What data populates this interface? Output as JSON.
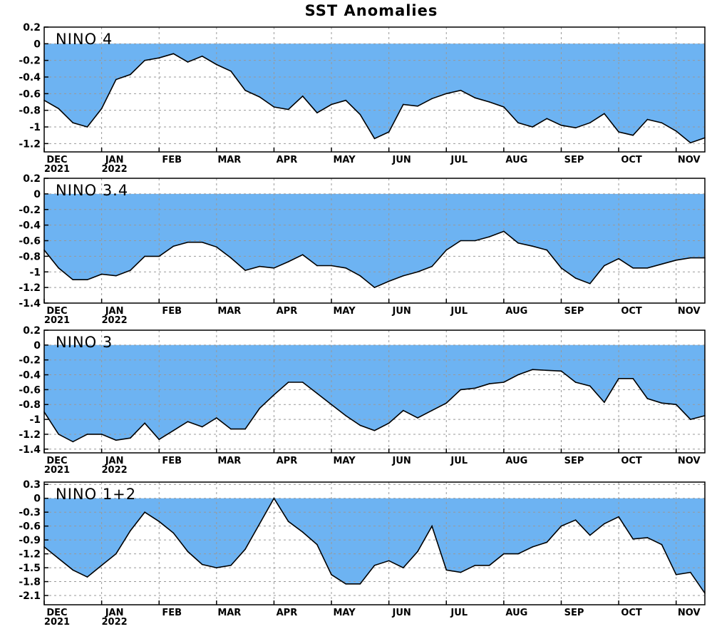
{
  "title": "SST Anomalies",
  "colors": {
    "fill": "#6db3f2",
    "line": "#000000",
    "grid": "#999999",
    "background": "#ffffff"
  },
  "x_axis": {
    "tick_labels": [
      "DEC",
      "JAN",
      "FEB",
      "MAR",
      "APR",
      "MAY",
      "JUN",
      "JUL",
      "AUG",
      "SEP",
      "OCT",
      "NOV"
    ],
    "year_labels": [
      {
        "month": "DEC",
        "year": "2021"
      },
      {
        "month": "JAN",
        "year": "2022"
      }
    ]
  },
  "chart_data": [
    {
      "type": "area",
      "label": "NINO 4",
      "ylim": [
        -1.3,
        0.2
      ],
      "yticks": [
        "0.2",
        "0",
        "-0.2",
        "-0.4",
        "-0.6",
        "-0.8",
        "-1",
        "-1.2"
      ],
      "ytick_values": [
        0.2,
        0,
        -0.2,
        -0.4,
        -0.6,
        -0.8,
        -1,
        -1.2
      ],
      "grid": true,
      "x": [
        0,
        0.25,
        0.5,
        0.75,
        1,
        1.25,
        1.5,
        1.75,
        2,
        2.25,
        2.5,
        2.75,
        3,
        3.25,
        3.5,
        3.75,
        4,
        4.25,
        4.5,
        4.75,
        5,
        5.25,
        5.5,
        5.75,
        6,
        6.25,
        6.5,
        6.75,
        7,
        7.25,
        7.5,
        7.75,
        8,
        8.25,
        8.5,
        8.75,
        9,
        9.25,
        9.5,
        9.75,
        10,
        10.25,
        10.5,
        10.75,
        11,
        11.25,
        11.5
      ],
      "values": [
        -0.68,
        -0.78,
        -0.95,
        -1.0,
        -0.78,
        -0.43,
        -0.37,
        -0.2,
        -0.17,
        -0.12,
        -0.22,
        -0.15,
        -0.25,
        -0.33,
        -0.56,
        -0.64,
        -0.76,
        -0.79,
        -0.63,
        -0.83,
        -0.73,
        -0.68,
        -0.85,
        -1.14,
        -1.06,
        -0.73,
        -0.75,
        -0.66,
        -0.6,
        -0.56,
        -0.65,
        -0.7,
        -0.76,
        -0.95,
        -1.0,
        -0.9,
        -0.98,
        -1.01,
        -0.95,
        -0.84,
        -1.06,
        -1.1,
        -0.91,
        -0.95,
        -1.05,
        -1.19,
        -1.13
      ]
    },
    {
      "type": "area",
      "label": "NINO 3.4",
      "ylim": [
        -1.4,
        0.2
      ],
      "yticks": [
        "0.2",
        "0",
        "-0.2",
        "-0.4",
        "-0.6",
        "-0.8",
        "-1",
        "-1.2",
        "-1.4"
      ],
      "ytick_values": [
        0.2,
        0,
        -0.2,
        -0.4,
        -0.6,
        -0.8,
        -1,
        -1.2,
        -1.4
      ],
      "grid": true,
      "x": [
        0,
        0.25,
        0.5,
        0.75,
        1,
        1.25,
        1.5,
        1.75,
        2,
        2.25,
        2.5,
        2.75,
        3,
        3.25,
        3.5,
        3.75,
        4,
        4.25,
        4.5,
        4.75,
        5,
        5.25,
        5.5,
        5.75,
        6,
        6.25,
        6.5,
        6.75,
        7,
        7.25,
        7.5,
        7.75,
        8,
        8.25,
        8.5,
        8.75,
        9,
        9.25,
        9.5,
        9.75,
        10,
        10.25,
        10.5,
        10.75,
        11,
        11.25,
        11.5
      ],
      "values": [
        -0.72,
        -0.95,
        -1.1,
        -1.1,
        -1.03,
        -1.05,
        -0.98,
        -0.8,
        -0.8,
        -0.67,
        -0.62,
        -0.62,
        -0.68,
        -0.82,
        -0.98,
        -0.93,
        -0.95,
        -0.87,
        -0.78,
        -0.92,
        -0.92,
        -0.95,
        -1.05,
        -1.2,
        -1.12,
        -1.05,
        -1.0,
        -0.93,
        -0.72,
        -0.6,
        -0.6,
        -0.55,
        -0.48,
        -0.63,
        -0.67,
        -0.72,
        -0.95,
        -1.08,
        -1.15,
        -0.92,
        -0.83,
        -0.95,
        -0.95,
        -0.9,
        -0.85,
        -0.82,
        -0.82
      ]
    },
    {
      "type": "area",
      "label": "NINO 3",
      "ylim": [
        -1.45,
        0.2
      ],
      "yticks": [
        "0.2",
        "0",
        "-0.2",
        "-0.4",
        "-0.6",
        "-0.8",
        "-1",
        "-1.2",
        "-1.4"
      ],
      "ytick_values": [
        0.2,
        0,
        -0.2,
        -0.4,
        -0.6,
        -0.8,
        -1,
        -1.2,
        -1.4
      ],
      "grid": true,
      "x": [
        0,
        0.25,
        0.5,
        0.75,
        1,
        1.25,
        1.5,
        1.75,
        2,
        2.25,
        2.5,
        2.75,
        3,
        3.25,
        3.5,
        3.75,
        4,
        4.25,
        4.5,
        4.75,
        5,
        5.25,
        5.5,
        5.75,
        6,
        6.25,
        6.5,
        6.75,
        7,
        7.25,
        7.5,
        7.75,
        8,
        8.25,
        8.5,
        8.75,
        9,
        9.25,
        9.5,
        9.75,
        10,
        10.25,
        10.5,
        10.75,
        11,
        11.25,
        11.5
      ],
      "values": [
        -0.9,
        -1.2,
        -1.3,
        -1.2,
        -1.2,
        -1.28,
        -1.25,
        -1.05,
        -1.27,
        -1.15,
        -1.03,
        -1.1,
        -0.98,
        -1.13,
        -1.13,
        -0.85,
        -0.67,
        -0.5,
        -0.5,
        -0.65,
        -0.8,
        -0.95,
        -1.08,
        -1.15,
        -1.05,
        -0.88,
        -0.98,
        -0.88,
        -0.78,
        -0.6,
        -0.58,
        -0.52,
        -0.5,
        -0.4,
        -0.33,
        -0.34,
        -0.35,
        -0.5,
        -0.55,
        -0.77,
        -0.45,
        -0.45,
        -0.72,
        -0.78,
        -0.8,
        -1.0,
        -0.95
      ]
    },
    {
      "type": "area",
      "label": "NINO 1+2",
      "ylim": [
        -2.3,
        0.35
      ],
      "yticks": [
        "0.3",
        "0",
        "-0.3",
        "-0.6",
        "-0.9",
        "-1.2",
        "-1.5",
        "-1.8",
        "-2.1"
      ],
      "ytick_values": [
        0.3,
        0,
        -0.3,
        -0.6,
        -0.9,
        -1.2,
        -1.5,
        -1.8,
        -2.1
      ],
      "grid": true,
      "x": [
        0,
        0.25,
        0.5,
        0.75,
        1,
        1.25,
        1.5,
        1.75,
        2,
        2.25,
        2.5,
        2.75,
        3,
        3.25,
        3.5,
        3.75,
        4,
        4.25,
        4.5,
        4.75,
        5,
        5.25,
        5.5,
        5.75,
        6,
        6.25,
        6.5,
        6.75,
        7,
        7.25,
        7.5,
        7.75,
        8,
        8.25,
        8.5,
        8.75,
        9,
        9.25,
        9.5,
        9.75,
        10,
        10.25,
        10.5,
        10.75,
        11,
        11.25,
        11.5
      ],
      "values": [
        -1.05,
        -1.3,
        -1.55,
        -1.7,
        -1.45,
        -1.2,
        -0.7,
        -0.3,
        -0.5,
        -0.75,
        -1.15,
        -1.43,
        -1.5,
        -1.45,
        -1.1,
        -0.55,
        0.0,
        -0.5,
        -0.73,
        -1.0,
        -1.65,
        -1.85,
        -1.85,
        -1.45,
        -1.35,
        -1.5,
        -1.15,
        -0.6,
        -1.55,
        -1.6,
        -1.45,
        -1.45,
        -1.2,
        -1.2,
        -1.05,
        -0.95,
        -0.6,
        -0.47,
        -0.8,
        -0.55,
        -0.4,
        -0.88,
        -0.85,
        -1.0,
        -1.65,
        -1.6,
        -2.05
      ]
    }
  ]
}
